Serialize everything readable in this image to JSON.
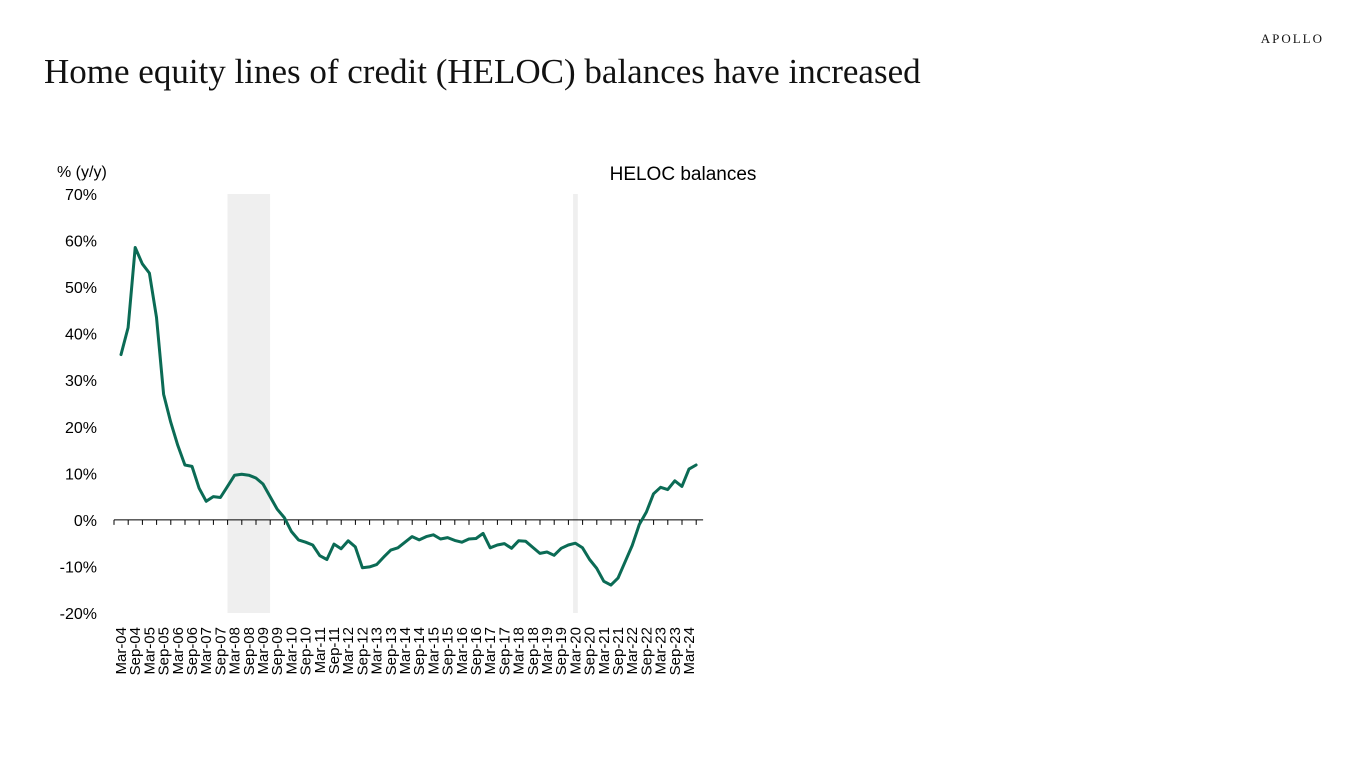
{
  "brand": "APOLLO",
  "slide_title": "Home equity lines of credit (HELOC) balances have increased",
  "colors": {
    "line": "#0b6b55",
    "recession": "#efefef",
    "axis": "#000000"
  },
  "chart_data": {
    "type": "line",
    "title": "HELOC balances",
    "ylabel": "% (y/y)",
    "xlabel": "",
    "ylim": [
      -20,
      70
    ],
    "y_ticks": [
      -20,
      -10,
      0,
      10,
      20,
      30,
      40,
      50,
      60,
      70
    ],
    "y_tick_labels": [
      "-20%",
      "-10%",
      "0%",
      "10%",
      "20%",
      "30%",
      "40%",
      "50%",
      "60%",
      "70%"
    ],
    "x_tick_labels": [
      "Mar-04",
      "Sep-04",
      "Mar-05",
      "Sep-05",
      "Mar-06",
      "Sep-06",
      "Mar-07",
      "Sep-07",
      "Mar-08",
      "Sep-08",
      "Mar-09",
      "Sep-09",
      "Mar-10",
      "Sep-10",
      "Mar-11",
      "Sep-11",
      "Mar-12",
      "Sep-12",
      "Mar-13",
      "Sep-13",
      "Mar-14",
      "Sep-14",
      "Mar-15",
      "Sep-15",
      "Mar-16",
      "Sep-16",
      "Mar-17",
      "Sep-17",
      "Mar-18",
      "Sep-18",
      "Mar-19",
      "Sep-19",
      "Mar-20",
      "Sep-20",
      "Mar-21",
      "Sep-21",
      "Mar-22",
      "Sep-22",
      "Mar-23",
      "Sep-23",
      "Mar-24"
    ],
    "grid": false,
    "legend": "none",
    "recession_shading": [
      {
        "start": "Dec-07",
        "end": "Jun-09"
      },
      {
        "start": "Feb-20",
        "end": "Apr-20"
      }
    ],
    "series": [
      {
        "x": [
          "Mar-04",
          "Jun-04",
          "Sep-04",
          "Dec-04",
          "Mar-05",
          "Jun-05",
          "Sep-05",
          "Dec-05",
          "Mar-06",
          "Jun-06",
          "Sep-06",
          "Dec-06",
          "Mar-07",
          "Jun-07",
          "Sep-07",
          "Dec-07",
          "Mar-08",
          "Jun-08",
          "Sep-08",
          "Dec-08",
          "Mar-09",
          "Jun-09",
          "Sep-09",
          "Dec-09",
          "Mar-10",
          "Jun-10",
          "Sep-10",
          "Dec-10",
          "Mar-11",
          "Jun-11",
          "Sep-11",
          "Dec-11",
          "Mar-12",
          "Jun-12",
          "Sep-12",
          "Dec-12",
          "Mar-13",
          "Jun-13",
          "Sep-13",
          "Dec-13",
          "Mar-14",
          "Jun-14",
          "Sep-14",
          "Dec-14",
          "Mar-15",
          "Jun-15",
          "Sep-15",
          "Dec-15",
          "Mar-16",
          "Jun-16",
          "Sep-16",
          "Dec-16",
          "Mar-17",
          "Jun-17",
          "Sep-17",
          "Dec-17",
          "Mar-18",
          "Jun-18",
          "Sep-18",
          "Dec-18",
          "Mar-19",
          "Jun-19",
          "Sep-19",
          "Dec-19",
          "Mar-20",
          "Jun-20",
          "Sep-20",
          "Dec-20",
          "Mar-21",
          "Jun-21",
          "Sep-21",
          "Dec-21",
          "Mar-22",
          "Jun-22",
          "Sep-22",
          "Dec-22",
          "Mar-23",
          "Jun-23",
          "Sep-23",
          "Dec-23",
          "Mar-24",
          "Jun-24"
        ],
        "values": [
          35.5,
          41.3,
          58.5,
          55.0,
          53.0,
          43.5,
          27.0,
          21.0,
          16.0,
          11.8,
          11.5,
          6.8,
          4.0,
          5.0,
          4.8,
          7.2,
          9.6,
          9.8,
          9.6,
          9.0,
          7.7,
          5.0,
          2.3,
          0.5,
          -2.5,
          -4.3,
          -4.8,
          -5.4,
          -7.7,
          -8.5,
          -5.2,
          -6.2,
          -4.5,
          -5.8,
          -10.3,
          -10.1,
          -9.6,
          -8.0,
          -6.5,
          -6.0,
          -4.8,
          -3.6,
          -4.3,
          -3.6,
          -3.2,
          -4.1,
          -3.8,
          -4.4,
          -4.8,
          -4.1,
          -4.0,
          -2.9,
          -6.0,
          -5.4,
          -5.1,
          -6.1,
          -4.5,
          -4.6,
          -5.9,
          -7.2,
          -6.9,
          -7.6,
          -6.1,
          -5.4,
          -5.0,
          -6.0,
          -8.5,
          -10.4,
          -13.2,
          -14.0,
          -12.5,
          -9.0,
          -5.5,
          -1.0,
          1.7,
          5.6,
          7.0,
          6.5,
          8.4,
          7.2,
          10.9,
          11.8
        ]
      }
    ]
  }
}
